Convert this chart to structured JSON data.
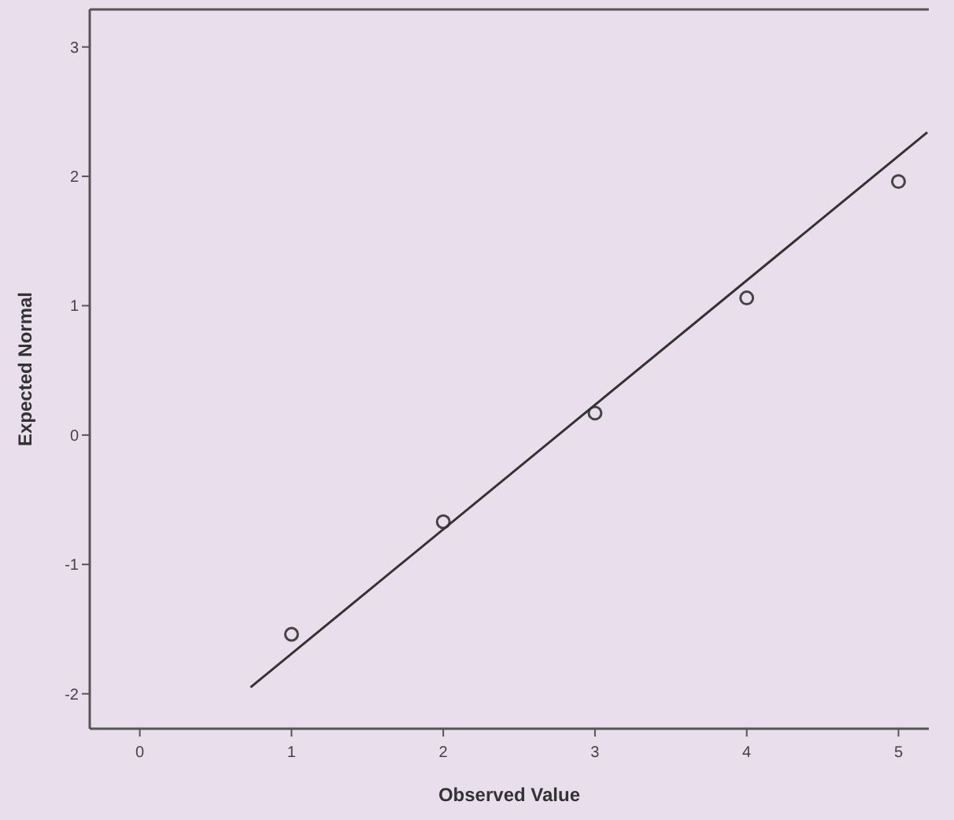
{
  "chart_data": {
    "type": "scatter",
    "xlabel": "Observed Value",
    "ylabel": "Expected Normal",
    "xlim": [
      -0.33,
      5.2
    ],
    "ylim": [
      -2.27,
      3.29
    ],
    "xticks": [
      0,
      1,
      2,
      3,
      4,
      5
    ],
    "yticks": [
      -2,
      -1,
      0,
      1,
      2,
      3
    ],
    "grid": false,
    "marker": "circle",
    "series": [
      {
        "type": "scatter",
        "color": "#444444",
        "x": [
          1,
          2,
          3,
          4,
          5
        ],
        "values": [
          -1.54,
          -0.67,
          0.17,
          1.06,
          1.96
        ]
      },
      {
        "type": "line",
        "color": "#333333",
        "marker": "none",
        "x": [
          0.73,
          5.19
        ],
        "values": [
          -1.95,
          2.34
        ]
      }
    ]
  }
}
